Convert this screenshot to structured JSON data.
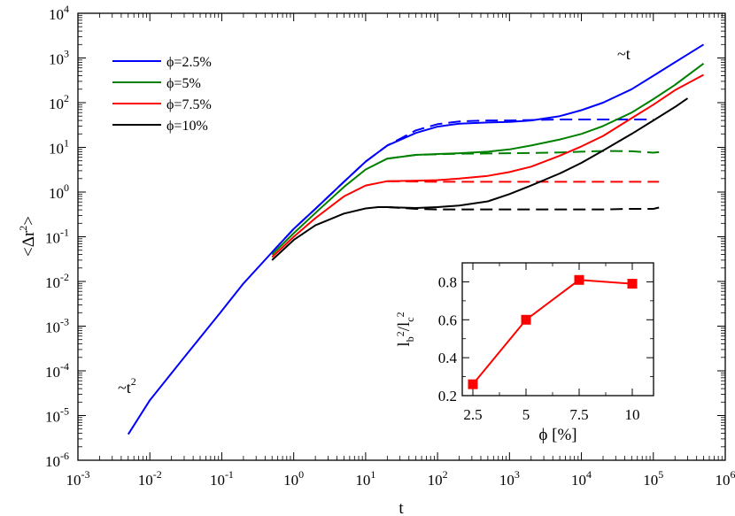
{
  "chart_data": [
    {
      "type": "line",
      "xscale": "log",
      "yscale": "log",
      "xlim": [
        0.001,
        1000000
      ],
      "ylim": [
        1e-06,
        10000
      ],
      "xlabel": "t",
      "ylabel_main": "<Δr",
      "ylabel_sup": "2",
      "ylabel_close": ">",
      "x_tick_labels": [
        {
          "value": 0.001,
          "base": "10",
          "exp": "-3"
        },
        {
          "value": 0.01,
          "base": "10",
          "exp": "-2"
        },
        {
          "value": 0.1,
          "base": "10",
          "exp": "-1"
        },
        {
          "value": 1,
          "base": "10",
          "exp": "0"
        },
        {
          "value": 10,
          "base": "10",
          "exp": "1"
        },
        {
          "value": 100,
          "base": "10",
          "exp": "2"
        },
        {
          "value": 1000,
          "base": "10",
          "exp": "3"
        },
        {
          "value": 10000,
          "base": "10",
          "exp": "4"
        },
        {
          "value": 100000,
          "base": "10",
          "exp": "5"
        },
        {
          "value": 1000000,
          "base": "10",
          "exp": "6"
        }
      ],
      "y_tick_labels": [
        {
          "value": 1e-06,
          "base": "10",
          "exp": "-6"
        },
        {
          "value": 1e-05,
          "base": "10",
          "exp": "-5"
        },
        {
          "value": 0.0001,
          "base": "10",
          "exp": "-4"
        },
        {
          "value": 0.001,
          "base": "10",
          "exp": "-3"
        },
        {
          "value": 0.01,
          "base": "10",
          "exp": "-2"
        },
        {
          "value": 0.1,
          "base": "10",
          "exp": "-1"
        },
        {
          "value": 1,
          "base": "10",
          "exp": "0"
        },
        {
          "value": 10,
          "base": "10",
          "exp": "1"
        },
        {
          "value": 100,
          "base": "10",
          "exp": "2"
        },
        {
          "value": 1000,
          "base": "10",
          "exp": "3"
        },
        {
          "value": 10000,
          "base": "10",
          "exp": "4"
        }
      ],
      "legend_position": "top-left",
      "legend": [
        {
          "label": "ϕ=2.5%",
          "color": "#0000ff"
        },
        {
          "label": "ϕ=5%",
          "color": "#008000"
        },
        {
          "label": "ϕ=7.5%",
          "color": "#ff0000"
        },
        {
          "label": "ϕ=10%",
          "color": "#000000"
        }
      ],
      "annotations": [
        {
          "base": "~t",
          "sup": "2",
          "at": [
            0.006,
            8e-05
          ]
        },
        {
          "base": "~t",
          "sup": "",
          "at": [
            13000,
            1500
          ]
        }
      ],
      "series": [
        {
          "name": "ϕ=2.5%",
          "color": "#0000ff",
          "style": "solid",
          "x": [
            0.005,
            0.01,
            0.03,
            0.1,
            0.2,
            0.5,
            1,
            2,
            5,
            10,
            20,
            50,
            100,
            200,
            500,
            1000,
            2000,
            5000,
            10000,
            20000,
            50000,
            100000,
            200000,
            500000
          ],
          "y": [
            3.8e-06,
            2.2e-05,
            0.0002,
            0.0022,
            0.009,
            0.045,
            0.15,
            0.42,
            1.7,
            4.8,
            11,
            21,
            29,
            34,
            36,
            37,
            40,
            50,
            68,
            100,
            200,
            400,
            800,
            2000
          ]
        },
        {
          "name": "ϕ=2.5% (dashed)",
          "color": "#0000ff",
          "style": "dashed",
          "x": [
            0.5,
            1,
            2,
            5,
            10,
            20,
            50,
            100,
            200,
            500,
            1000,
            2000,
            5000,
            10000,
            20000,
            50000,
            100000
          ],
          "y": [
            0.045,
            0.15,
            0.42,
            1.7,
            4.8,
            11,
            24,
            33,
            38,
            40,
            40,
            41,
            42,
            42,
            42,
            42,
            42
          ]
        },
        {
          "name": "ϕ=5%",
          "color": "#008000",
          "style": "solid",
          "x": [
            0.5,
            1,
            2,
            5,
            10,
            20,
            50,
            100,
            200,
            500,
            1000,
            2000,
            5000,
            10000,
            20000,
            50000,
            100000,
            200000,
            500000
          ],
          "y": [
            0.04,
            0.12,
            0.34,
            1.3,
            3.2,
            5.6,
            6.8,
            7.1,
            7.4,
            8,
            9,
            11,
            15,
            20,
            30,
            60,
            120,
            250,
            750
          ]
        },
        {
          "name": "ϕ=5% (dashed)",
          "color": "#008000",
          "style": "dashed",
          "x": [
            20,
            50,
            100,
            200,
            500,
            1000,
            2000,
            5000,
            10000,
            20000,
            50000,
            100000,
            120000
          ],
          "y": [
            5.6,
            6.8,
            7.0,
            7.2,
            7.3,
            7.4,
            7.5,
            7.7,
            8.0,
            8.3,
            8.2,
            7.6,
            7.8
          ]
        },
        {
          "name": "ϕ=7.5%",
          "color": "#ff0000",
          "style": "solid",
          "x": [
            0.5,
            1,
            2,
            5,
            10,
            20,
            50,
            100,
            200,
            500,
            1000,
            2000,
            5000,
            10000,
            20000,
            50000,
            100000,
            200000,
            500000
          ],
          "y": [
            0.035,
            0.1,
            0.26,
            0.8,
            1.4,
            1.75,
            1.8,
            1.85,
            2.0,
            2.3,
            2.8,
            3.7,
            6.5,
            10.5,
            18,
            45,
            90,
            190,
            420
          ]
        },
        {
          "name": "ϕ=7.5% (dashed)",
          "color": "#ff0000",
          "style": "dashed",
          "x": [
            20,
            50,
            100,
            200,
            500,
            1000,
            2000,
            5000,
            10000,
            20000,
            50000,
            100000,
            120000
          ],
          "y": [
            1.75,
            1.72,
            1.7,
            1.7,
            1.7,
            1.7,
            1.7,
            1.7,
            1.7,
            1.7,
            1.7,
            1.7,
            1.7
          ]
        },
        {
          "name": "ϕ=10%",
          "color": "#000000",
          "style": "solid",
          "x": [
            0.5,
            1,
            2,
            5,
            10,
            15,
            20,
            30,
            50,
            100,
            200,
            500,
            1000,
            2000,
            5000,
            10000,
            20000,
            50000,
            100000,
            200000,
            300000
          ],
          "y": [
            0.03,
            0.085,
            0.18,
            0.33,
            0.43,
            0.46,
            0.46,
            0.45,
            0.44,
            0.46,
            0.5,
            0.62,
            0.9,
            1.4,
            2.6,
            4.5,
            8.5,
            20,
            40,
            80,
            125
          ]
        },
        {
          "name": "ϕ=10% (dashed)",
          "color": "#000000",
          "style": "dashed",
          "x": [
            20,
            50,
            100,
            200,
            500,
            1000,
            2000,
            5000,
            10000,
            20000,
            50000,
            100000,
            120000
          ],
          "y": [
            0.46,
            0.42,
            0.41,
            0.41,
            0.41,
            0.41,
            0.41,
            0.41,
            0.41,
            0.41,
            0.42,
            0.42,
            0.45
          ]
        }
      ]
    },
    {
      "type": "line",
      "inset": true,
      "xlabel": "ϕ [%]",
      "ylabel_parts": {
        "l1": "l",
        "s1": "b",
        "slash": "/l",
        "s2": "c"
      },
      "xlim": [
        2,
        11
      ],
      "ylim": [
        0.2,
        0.9
      ],
      "x_ticks": [
        "2.5",
        "5",
        "7.5",
        "10"
      ],
      "y_ticks": [
        "0.2",
        "0.4",
        "0.6",
        "0.8"
      ],
      "color": "#ff0000",
      "marker": "square",
      "series": [
        {
          "name": "lb/lc",
          "x": [
            2.5,
            5,
            7.5,
            10
          ],
          "y": [
            0.26,
            0.6,
            0.81,
            0.79
          ]
        }
      ]
    }
  ]
}
